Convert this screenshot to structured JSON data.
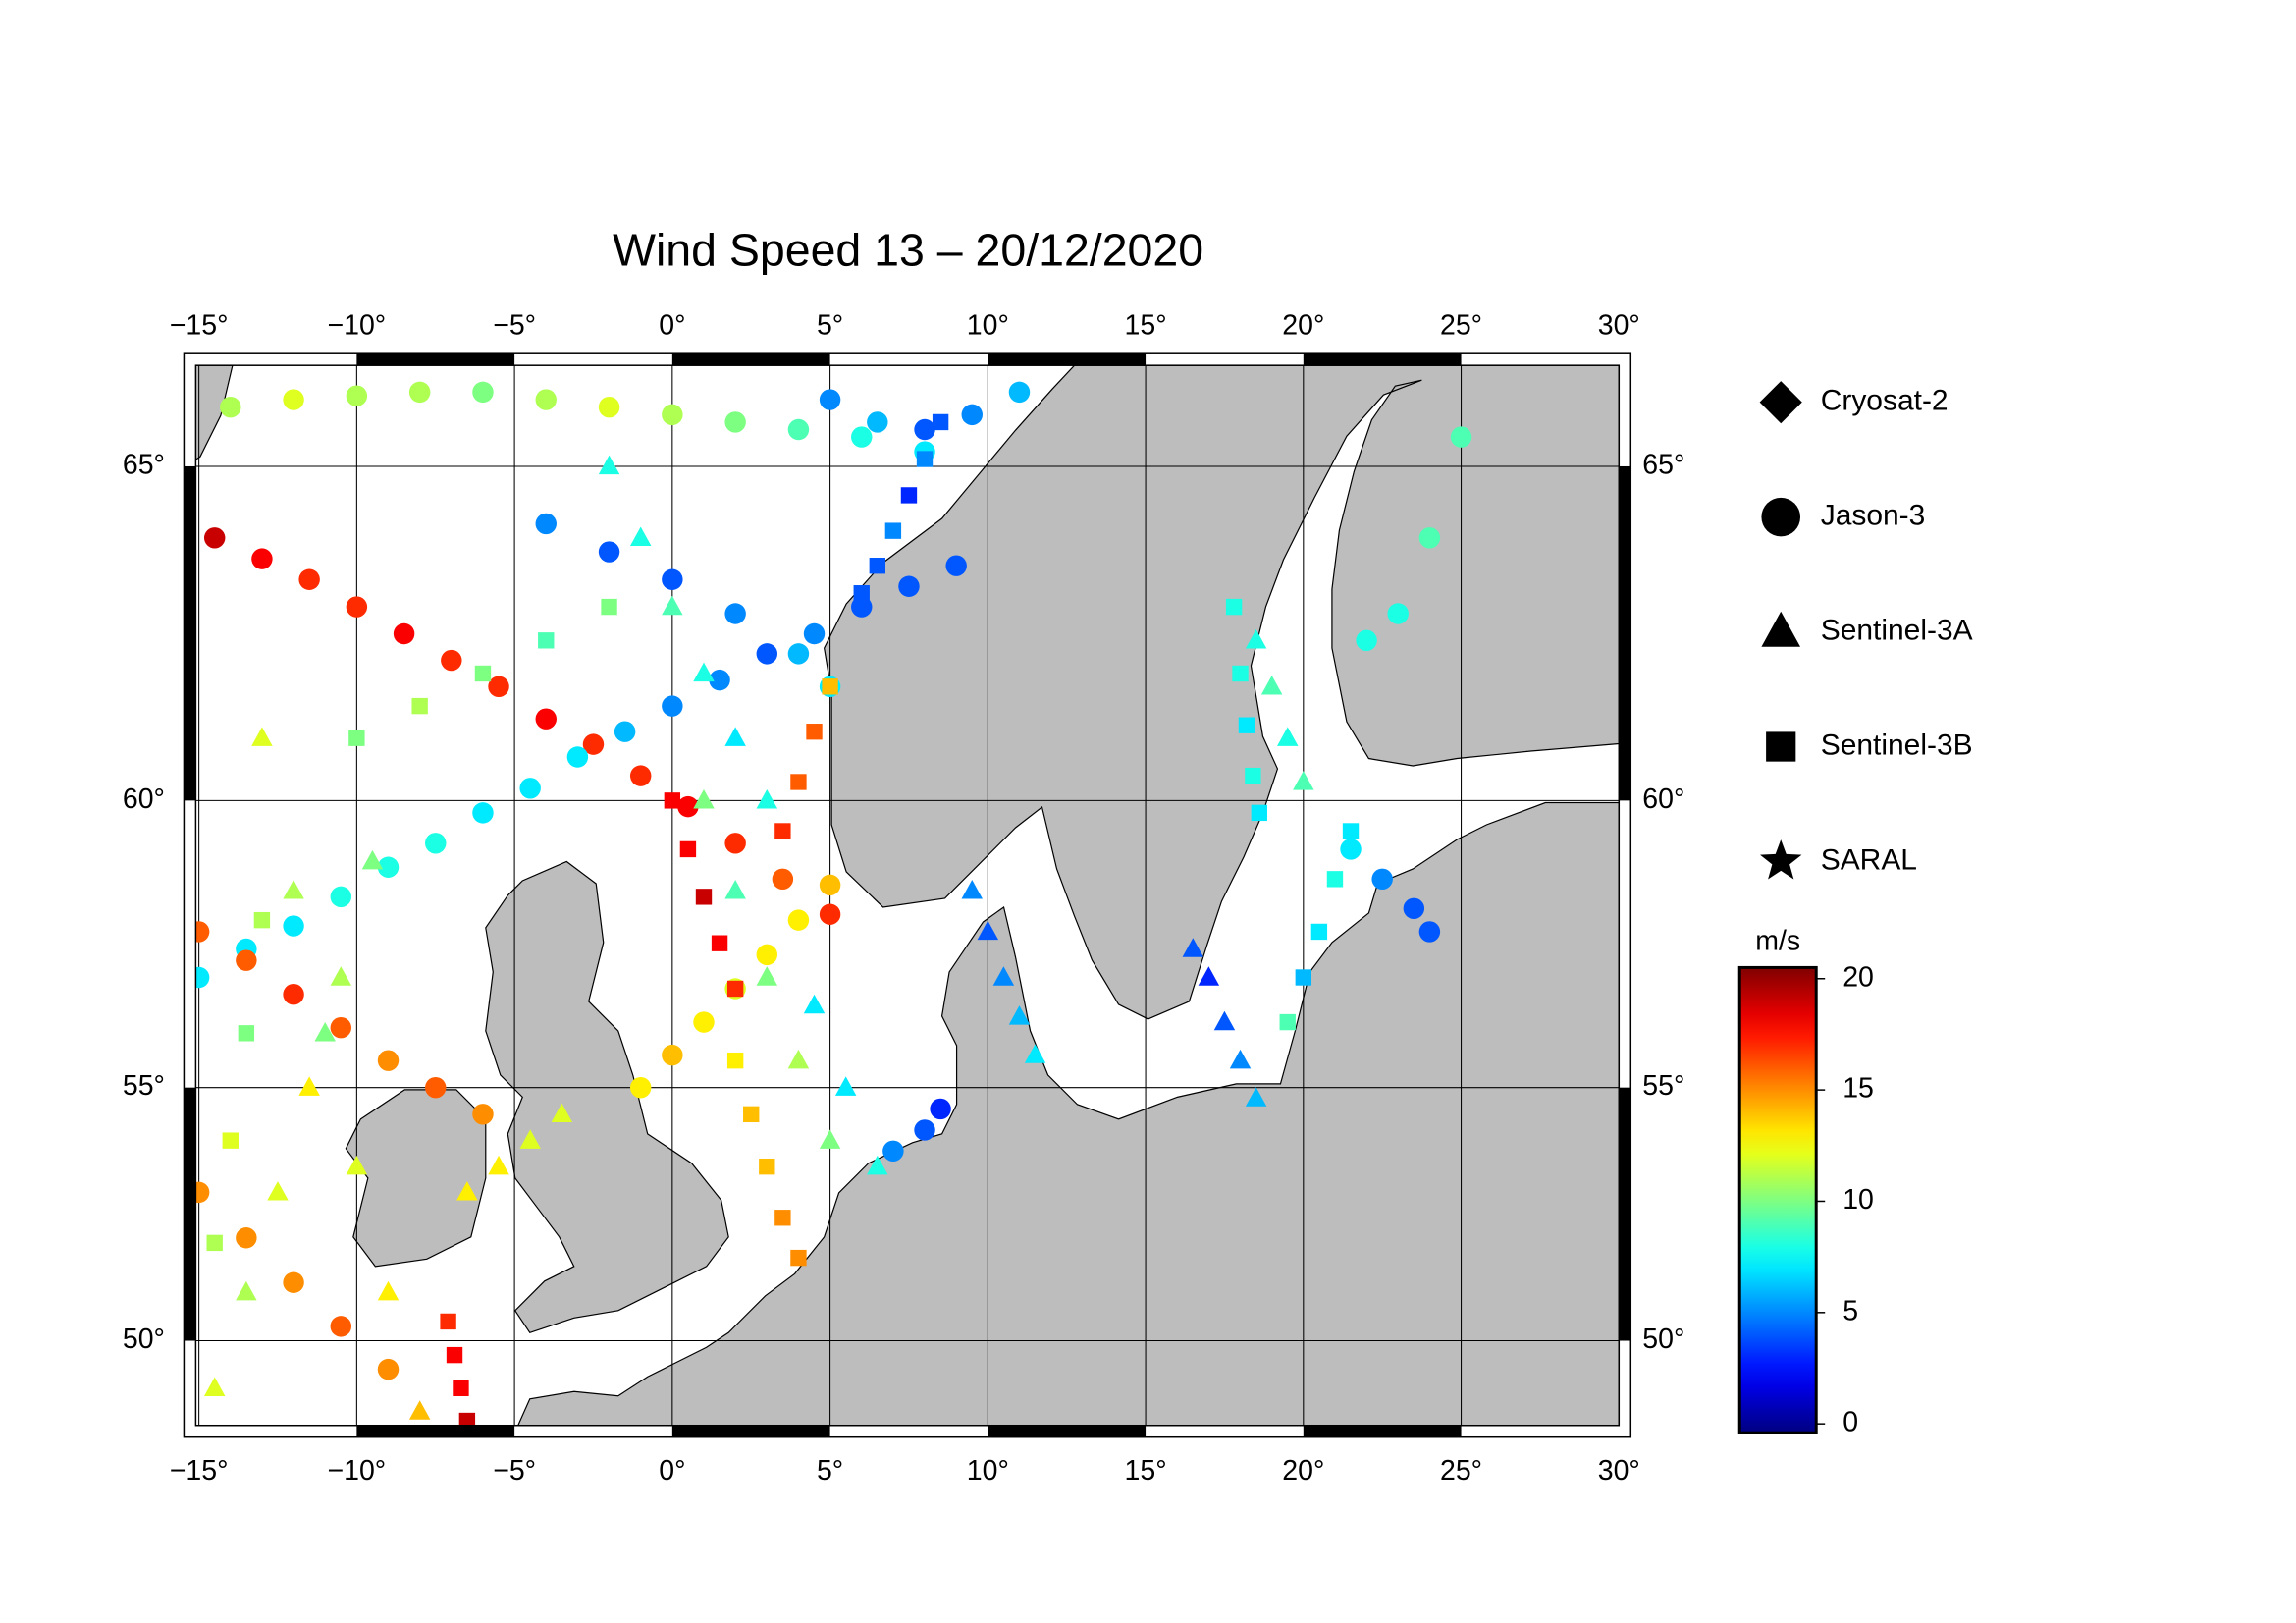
{
  "chart_data": {
    "type": "map-scatter",
    "title": "Wind Speed 13 – 20/12/2020",
    "projection": "mercator",
    "xlim": [
      -15.1,
      30
    ],
    "ylim": [
      48.2,
      66.35
    ],
    "xticks": [
      {
        "value": -15,
        "label": "−15°"
      },
      {
        "value": -10,
        "label": "−10°"
      },
      {
        "value": -5,
        "label": "−5°"
      },
      {
        "value": 0,
        "label": "0°"
      },
      {
        "value": 5,
        "label": "5°"
      },
      {
        "value": 10,
        "label": "10°"
      },
      {
        "value": 15,
        "label": "15°"
      },
      {
        "value": 20,
        "label": "20°"
      },
      {
        "value": 25,
        "label": "25°"
      },
      {
        "value": 30,
        "label": "30°"
      }
    ],
    "yticks": [
      {
        "value": 50,
        "label": "50°"
      },
      {
        "value": 55,
        "label": "55°"
      },
      {
        "value": 60,
        "label": "60°"
      },
      {
        "value": 65,
        "label": "65°"
      }
    ],
    "grid": true,
    "colormap": "jet",
    "clim": [
      -0.4,
      20.5
    ],
    "colorbar_ticks": [
      0,
      5,
      10,
      15,
      20
    ],
    "colorbar_label": "m/s",
    "series": [
      {
        "name": "Cryosat-2",
        "marker": "diamond",
        "lon": [],
        "lat": [],
        "values": []
      },
      {
        "name": "Jason-3",
        "marker": "circle",
        "lon": [
          -14.5,
          -13,
          -11.5,
          -10,
          -8.5,
          -7,
          -5.5,
          -4,
          -2.5,
          -1,
          0.5,
          2,
          3.5,
          5,
          9,
          7.5,
          6,
          4.5,
          3,
          1.5,
          0,
          -1.5,
          -3,
          -4.5,
          -6,
          -7.5,
          -9,
          -10.5,
          -12,
          -13.5,
          -15,
          -4,
          -2,
          0,
          2,
          4,
          5,
          -14,
          -12,
          -10,
          -8,
          -6,
          -4,
          -2,
          0,
          2,
          4,
          6,
          8,
          -15,
          -13.5,
          -12,
          -10.5,
          -9,
          -7.5,
          -6,
          -15,
          -13.5,
          -12,
          -10.5,
          -9,
          -1,
          0,
          1,
          2,
          3,
          4,
          5,
          21.5,
          22.5,
          23.5,
          24,
          22,
          23,
          24,
          25,
          5,
          6.5,
          8,
          9.5,
          11,
          7,
          8,
          8.5
        ],
        "lat": [
          64.0,
          63.7,
          63.4,
          63.0,
          62.6,
          62.2,
          61.8,
          61.3,
          60.9,
          60.4,
          59.9,
          59.3,
          58.7,
          58.1,
          63.6,
          63.3,
          63.0,
          62.6,
          62.3,
          61.9,
          61.5,
          61.1,
          60.7,
          60.2,
          59.8,
          59.3,
          58.9,
          58.4,
          57.9,
          57.5,
          57.0,
          64.2,
          63.8,
          63.4,
          62.9,
          62.3,
          61.8,
          65.8,
          65.9,
          65.95,
          66.0,
          66.0,
          65.9,
          65.8,
          65.7,
          65.6,
          65.5,
          65.4,
          65.2,
          57.8,
          57.3,
          56.7,
          56.1,
          55.5,
          55.0,
          54.5,
          53,
          52.1,
          51.2,
          50.3,
          49.4,
          55,
          55.6,
          56.2,
          56.8,
          57.4,
          58.0,
          58.6,
          59.2,
          58.7,
          58.2,
          57.8,
          62.5,
          62.9,
          64.0,
          65.4,
          65.9,
          65.6,
          65.5,
          65.7,
          66.0,
          53.8,
          54.2,
          54.6
        ],
        "values": [
          19,
          18,
          17,
          17,
          18,
          17,
          17,
          18,
          17,
          17,
          18,
          17,
          16,
          17,
          4,
          4,
          4,
          5,
          4,
          5,
          5,
          6,
          7,
          7,
          7,
          8,
          8,
          8,
          7,
          7,
          7,
          5,
          4,
          4,
          5,
          6,
          7,
          11,
          12,
          11,
          11,
          10,
          11,
          12,
          11,
          10,
          9,
          8,
          7,
          16,
          16,
          17,
          16,
          15,
          16,
          15,
          15,
          15,
          15,
          16,
          15,
          13,
          14,
          13,
          12,
          13,
          13,
          14,
          7,
          5,
          4,
          4,
          8,
          8,
          9,
          9,
          5,
          6,
          4,
          5,
          6,
          5,
          4,
          3
        ]
      },
      {
        "name": "Sentinel-3A",
        "marker": "triangle",
        "lon": [
          -14.5,
          -13.5,
          -12.5,
          -11.5,
          -10.5,
          -9.5,
          -8,
          -9,
          -10,
          -11,
          -12,
          -13,
          1,
          2,
          3,
          4,
          5,
          4.5,
          5.5,
          6.5,
          9.5,
          10,
          10.5,
          11,
          11.5,
          16.5,
          17,
          17.5,
          18,
          18.5,
          18.5,
          19,
          19.5,
          20,
          -2,
          -1,
          0,
          1,
          2,
          3,
          -6.5,
          -5.5,
          -4.5,
          -3.5
        ],
        "lat": [
          49,
          51,
          53,
          55,
          57,
          59,
          48.5,
          51,
          53.5,
          56,
          58.5,
          61,
          60,
          58.5,
          57,
          55.5,
          54,
          56.5,
          55,
          53.5,
          58.5,
          57.8,
          57,
          56.3,
          55.6,
          57.5,
          57,
          56.2,
          55.5,
          54.8,
          62.5,
          61.8,
          61.0,
          60.3,
          65,
          64,
          63,
          62,
          61,
          60,
          53,
          53.5,
          54,
          54.5
        ],
        "values": [
          12,
          11,
          12,
          13,
          11,
          10,
          14,
          13,
          12,
          10,
          11,
          12,
          10,
          9,
          10,
          11,
          10,
          7,
          7,
          8,
          5,
          4,
          5,
          6,
          7,
          4,
          3,
          4,
          5,
          6,
          8,
          9,
          8,
          9,
          8,
          8,
          9,
          8,
          7,
          8,
          13,
          13,
          12,
          12
        ]
      },
      {
        "name": "Sentinel-3B",
        "marker": "square",
        "lon": [
          0,
          0.5,
          1,
          1.5,
          2,
          3.5,
          4,
          4.5,
          5,
          6,
          6.5,
          7,
          7.5,
          8,
          8.5,
          2,
          2.5,
          3,
          3.5,
          4,
          -10,
          -8,
          -6,
          -4,
          -2,
          17.8,
          18,
          18.2,
          18.4,
          18.6,
          21.5,
          21,
          20.5,
          20,
          19.5,
          -6.5,
          -6.7,
          -6.9,
          -7.1,
          -14.5,
          -14,
          -13.5,
          -13
        ],
        "lat": [
          60,
          59.2,
          58.4,
          57.6,
          56.8,
          59.5,
          60.3,
          61.1,
          61.8,
          63.2,
          63.6,
          64.1,
          64.6,
          65.1,
          65.6,
          55.5,
          54.5,
          53.5,
          52.5,
          51.7,
          61,
          61.5,
          62,
          62.5,
          63,
          63,
          62,
          61.2,
          60.4,
          59.8,
          59.5,
          58.7,
          57.8,
          57,
          56.2,
          48.3,
          49,
          49.7,
          50.4,
          52,
          54,
          56,
          58
        ],
        "values": [
          18,
          18,
          19,
          18,
          17,
          17,
          16,
          16,
          14,
          4,
          4,
          5,
          3,
          5,
          4,
          13,
          14,
          14,
          15,
          15,
          10,
          11,
          10,
          9,
          10,
          8,
          8,
          7,
          8,
          7,
          7,
          8,
          7,
          6,
          9,
          19,
          18,
          18,
          17,
          11,
          12,
          10,
          11
        ]
      },
      {
        "name": "SARAL",
        "marker": "star",
        "lon": [],
        "lat": [],
        "values": []
      }
    ]
  }
}
